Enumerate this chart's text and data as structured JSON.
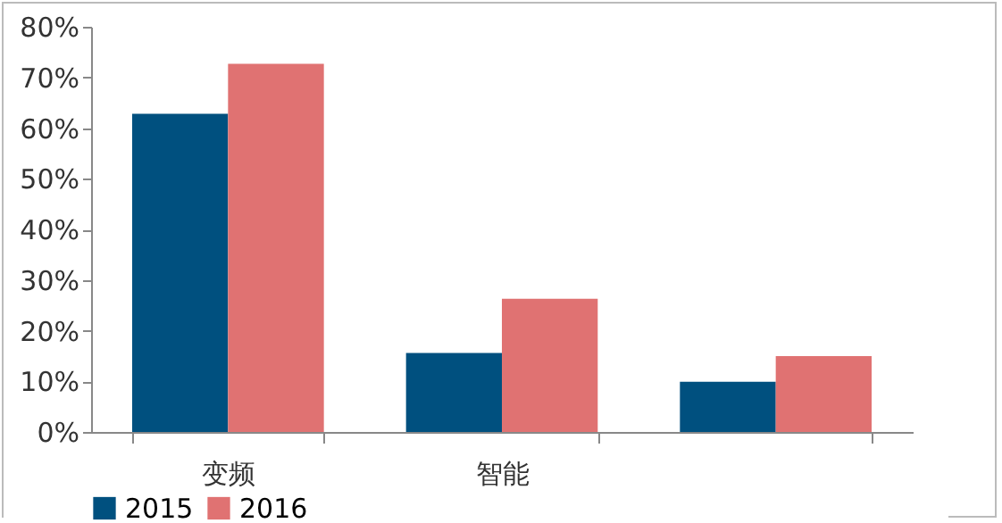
{
  "chart_data": {
    "type": "bar",
    "categories": [
      "变频",
      "智能",
      null
    ],
    "series": [
      {
        "name": "2015",
        "color": "#00507f",
        "values": [
          62.8,
          15.6,
          9.9
        ]
      },
      {
        "name": "2016",
        "color": "#e07272",
        "values": [
          72.7,
          26.3,
          15.0
        ]
      }
    ],
    "ylim": [
      0,
      80
    ],
    "yticks": [
      {
        "value": 0,
        "label": "0%"
      },
      {
        "value": 10,
        "label": "10%"
      },
      {
        "value": 20,
        "label": "20%"
      },
      {
        "value": 30,
        "label": "30%"
      },
      {
        "value": 40,
        "label": "40%"
      },
      {
        "value": 50,
        "label": "50%"
      },
      {
        "value": 60,
        "label": "60%"
      },
      {
        "value": 70,
        "label": "70%"
      },
      {
        "value": 80,
        "label": "80%"
      }
    ],
    "grid": false,
    "legend": "bottom"
  }
}
